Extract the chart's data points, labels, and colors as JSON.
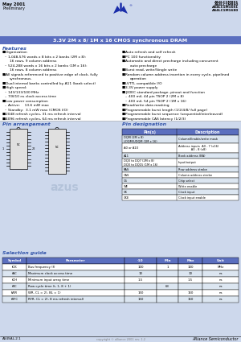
{
  "page_bg": "#ffffff",
  "header_bg": "#cdd8ec",
  "title_bar_bg": "#5b6fbf",
  "title_text": "3.3V 2M x 8/ 1M x 16 CMOS synchronous DRAM",
  "title_color": "white",
  "date_text": "May 2001",
  "prelim_text": "Preliminary",
  "part_numbers": [
    "AS4LC1M8S1",
    "AS4LC1M8S0",
    "AS4LC1M16S1",
    "AS4LC1M1680"
  ],
  "features_title": "Features",
  "blue_color": "#3355aa",
  "features_left": [
    [
      "bullet",
      "Organization"
    ],
    [
      "dash",
      "1,048,576 words x 8 bits x 2 banks (2M x 8):"
    ],
    [
      "sub",
      "16 rows, 9 column address"
    ],
    [
      "dash",
      "524,288 words x 16 bits x 2 banks (1M x 16):"
    ],
    [
      "sub",
      "16 rows, 8 column address"
    ],
    [
      "bullet",
      "All signals referenced to positive edge of clock, fully"
    ],
    [
      "sub",
      "synchronous."
    ],
    [
      "bullet",
      "Dual internal banks controlled by A11 (bank select)"
    ],
    [
      "bullet",
      "High speed:"
    ],
    [
      "dash",
      "143/133/100 MHz"
    ],
    [
      "dash",
      "7/8/10 ns clock access time"
    ],
    [
      "bullet",
      "Low power consumption"
    ],
    [
      "dash",
      "Active:    13.6 mW max"
    ],
    [
      "dash",
      "Standby:  3.1 mW max (CMOS I/O)"
    ],
    [
      "bullet",
      "2048 refresh cycles, 31 ms refresh interval"
    ],
    [
      "bullet",
      "4096 refresh cycles, 64 ms refresh interval"
    ]
  ],
  "features_right": [
    [
      "bullet",
      "Auto refresh and self refresh"
    ],
    [
      "bullet",
      "PC 100 functionality"
    ],
    [
      "bullet",
      "Automatic and direct precharge including concurrent"
    ],
    [
      "sub",
      "auto precharge"
    ],
    [
      "bullet",
      "Burst read, write/Single write"
    ],
    [
      "bullet",
      "Random column address insertion in every cycle, pipelined"
    ],
    [
      "sub",
      "operation"
    ],
    [
      "bullet",
      "LVTTL compatible I/O"
    ],
    [
      "bullet",
      "3.3V power supply"
    ],
    [
      "bullet",
      "JEDEC standard package, pinout and function"
    ],
    [
      "dash",
      "400 mil, 44 pin TSOP 2 (2M x 8)"
    ],
    [
      "dash",
      "400 mil, 54 pin TSOP 2 (1M x 16)"
    ],
    [
      "bullet",
      "Read/write data masking"
    ],
    [
      "bullet",
      "Programmable burst length (1/2/4/8/ full page)"
    ],
    [
      "bullet",
      "Programmable burst sequence (sequential/interleaved)"
    ],
    [
      "bullet",
      "Programmable CAS latency (1/2/3)"
    ]
  ],
  "pin_arr_title": "Pin arrangement",
  "pin_des_title": "Pin designation",
  "table_header_bg": "#5b6fbf",
  "pin_table_rows": [
    [
      "DQM (2M x 8)\nLDQM/UDQM (1M x 16)",
      "Column/Enable/write mask"
    ],
    [
      "A0 or A10",
      "Address inputs  A0 - 7 (x16)\n              A0 - 8 (x8)"
    ],
    [
      "A11",
      "Bank address (BA)"
    ],
    [
      "DQ0 to DQ7 (2M x 8)\nDQ0 to DQ15 (1M x 16)",
      "Input/output"
    ],
    [
      "RAS",
      "Row address strobe"
    ],
    [
      "CAS",
      "Column address strobe"
    ],
    [
      "CS",
      "Chip select"
    ],
    [
      "WE",
      "Write enable"
    ],
    [
      "CK",
      "Clock input"
    ],
    [
      "CKE",
      "Clock input enable"
    ]
  ],
  "sel_guide_title": "Selection guide",
  "sel_header_bg": "#5b6fbf",
  "sel_col_labels": [
    "Symbol",
    "Parameter",
    "-10",
    "Min",
    "Max",
    "Unit"
  ],
  "sel_symbol_labels": [
    "fCK",
    "tAC",
    "tCH",
    "tRC",
    "tWR",
    "tRFC"
  ],
  "sel_param_labels": [
    "Bus frequency (f)",
    "Maximum clock access time",
    "Minimum input array time",
    "Row cycle time (t, 1, 8 + 1)",
    "WR, CL = 2), BL = 1)",
    "RFR, CL = 2), 8 ms refresh interval)"
  ],
  "sel_minus10": [
    "100",
    "10",
    "1.5",
    "",
    "150",
    "150"
  ],
  "sel_min": [
    "1",
    "",
    "",
    "63",
    "",
    ""
  ],
  "sel_max": [
    "100",
    "10",
    "1.5",
    "",
    "150",
    "150"
  ],
  "sel_unit": [
    "MHz",
    "ns",
    "ns",
    "ns",
    "ns",
    "ns"
  ],
  "footer_text": "AS4SAL-2.1",
  "footer_right": "Alliance Semiconductor",
  "logo_color": "#1a2daa",
  "watermark_color": "#b8c8e0"
}
